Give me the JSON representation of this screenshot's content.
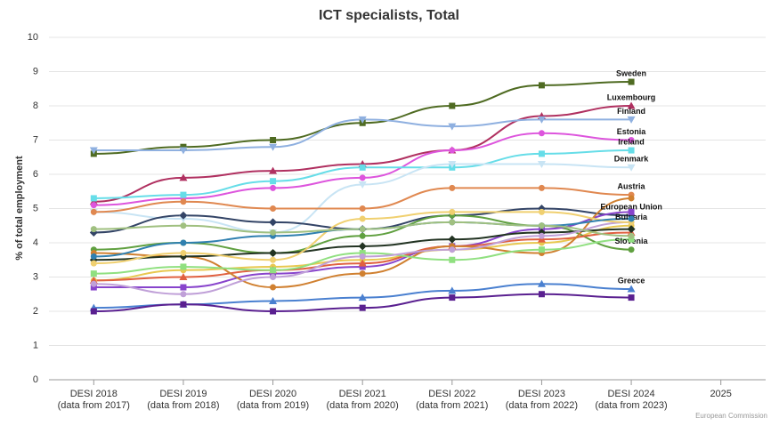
{
  "chart_data": {
    "type": "line",
    "title": "ICT specialists, Total",
    "y_label": "% of total employment",
    "credits": "European Commission",
    "categories": [
      "DESI 2018\n(data from 2017)",
      "DESI 2019\n(data from 2018)",
      "DESI 2020\n(data from 2019)",
      "DESI 2021\n(data from 2020)",
      "DESI 2022\n(data from 2021)",
      "DESI 2023\n(data from 2022)",
      "DESI 2024\n(data from 2023)",
      "2025"
    ],
    "ylim": [
      0,
      10
    ],
    "yticks": [
      0,
      1,
      2,
      3,
      4,
      5,
      6,
      7,
      8,
      9,
      10
    ],
    "grid": true,
    "series": [
      {
        "name": "Sweden",
        "color": "#4f6b22",
        "marker": "square",
        "values": [
          6.6,
          6.8,
          7.0,
          7.5,
          8.0,
          8.6,
          8.7,
          null
        ]
      },
      {
        "name": "Luxembourg",
        "color": "#b03060",
        "marker": "triangle",
        "values": [
          5.2,
          5.9,
          6.1,
          6.3,
          6.7,
          7.7,
          8.0,
          null
        ]
      },
      {
        "name": "Finland",
        "color": "#8fb0e0",
        "marker": "triangle-down",
        "values": [
          6.7,
          6.7,
          6.8,
          7.6,
          7.4,
          7.6,
          7.6,
          null
        ]
      },
      {
        "name": "Estonia",
        "color": "#dd55dd",
        "marker": "circle",
        "values": [
          5.1,
          5.3,
          5.6,
          5.9,
          6.7,
          7.2,
          7.0,
          null
        ]
      },
      {
        "name": "Ireland",
        "color": "#66dde8",
        "marker": "square",
        "values": [
          5.3,
          5.4,
          5.8,
          6.2,
          6.2,
          6.6,
          6.7,
          null
        ]
      },
      {
        "name": "Denmark",
        "color": "#c8e4f4",
        "marker": "triangle-down",
        "values": [
          4.9,
          4.7,
          4.3,
          5.7,
          6.3,
          6.3,
          6.2,
          null
        ]
      },
      {
        "name": "Austria",
        "color": "#e08850",
        "marker": "circle",
        "values": [
          4.9,
          5.2,
          5.0,
          5.0,
          5.6,
          5.6,
          5.4,
          null
        ]
      },
      {
        "name": "European Union",
        "color": "#334466",
        "marker": "diamond",
        "values": [
          4.3,
          4.8,
          4.6,
          4.4,
          4.8,
          5.0,
          4.8,
          null
        ]
      },
      {
        "name": "Bulgaria",
        "color": "#e8c850",
        "marker": "circle",
        "values": [
          2.9,
          3.2,
          3.3,
          3.5,
          3.8,
          4.0,
          4.5,
          null
        ]
      },
      {
        "name": "Slovenia",
        "color": "#60a040",
        "marker": "circle",
        "values": [
          3.8,
          4.0,
          3.7,
          4.2,
          4.8,
          4.5,
          3.8,
          null
        ]
      },
      {
        "name": "Greece",
        "color": "#4a80d0",
        "marker": "triangle",
        "values": [
          2.1,
          2.2,
          2.3,
          2.4,
          2.6,
          2.8,
          2.65,
          null
        ]
      },
      {
        "color": "#5a2090",
        "marker": "square",
        "values": [
          2.0,
          2.2,
          2.0,
          2.1,
          2.4,
          2.5,
          2.4,
          null
        ]
      },
      {
        "color": "#8844cc",
        "marker": "square",
        "values": [
          2.7,
          2.7,
          3.1,
          3.3,
          3.9,
          4.4,
          4.9,
          null
        ]
      },
      {
        "color": "#e06040",
        "marker": "triangle",
        "values": [
          2.9,
          3.0,
          3.2,
          3.4,
          3.9,
          4.1,
          4.3,
          null
        ]
      },
      {
        "color": "#d08030",
        "marker": "circle",
        "values": [
          3.7,
          3.6,
          2.7,
          3.1,
          3.9,
          3.7,
          5.3,
          null
        ]
      },
      {
        "color": "#90e080",
        "marker": "square",
        "values": [
          3.1,
          3.3,
          3.2,
          3.7,
          3.5,
          3.8,
          4.1,
          null
        ]
      },
      {
        "color": "#223322",
        "marker": "diamond",
        "values": [
          3.5,
          3.6,
          3.7,
          3.9,
          4.1,
          4.3,
          4.4,
          null
        ]
      },
      {
        "color": "#c0a0d8",
        "marker": "circle",
        "values": [
          2.8,
          2.5,
          3.0,
          3.6,
          3.8,
          4.2,
          4.6,
          null
        ]
      },
      {
        "color": "#f0d070",
        "marker": "circle",
        "values": [
          3.4,
          3.7,
          3.5,
          4.7,
          4.9,
          4.9,
          4.6,
          null
        ]
      },
      {
        "color": "#3080b0",
        "marker": "circle",
        "values": [
          3.6,
          4.0,
          4.2,
          4.4,
          4.6,
          4.5,
          4.7,
          null
        ]
      },
      {
        "color": "#a0c080",
        "marker": "circle",
        "values": [
          4.4,
          4.5,
          4.3,
          4.4,
          4.6,
          4.5,
          4.2,
          null
        ]
      }
    ]
  }
}
